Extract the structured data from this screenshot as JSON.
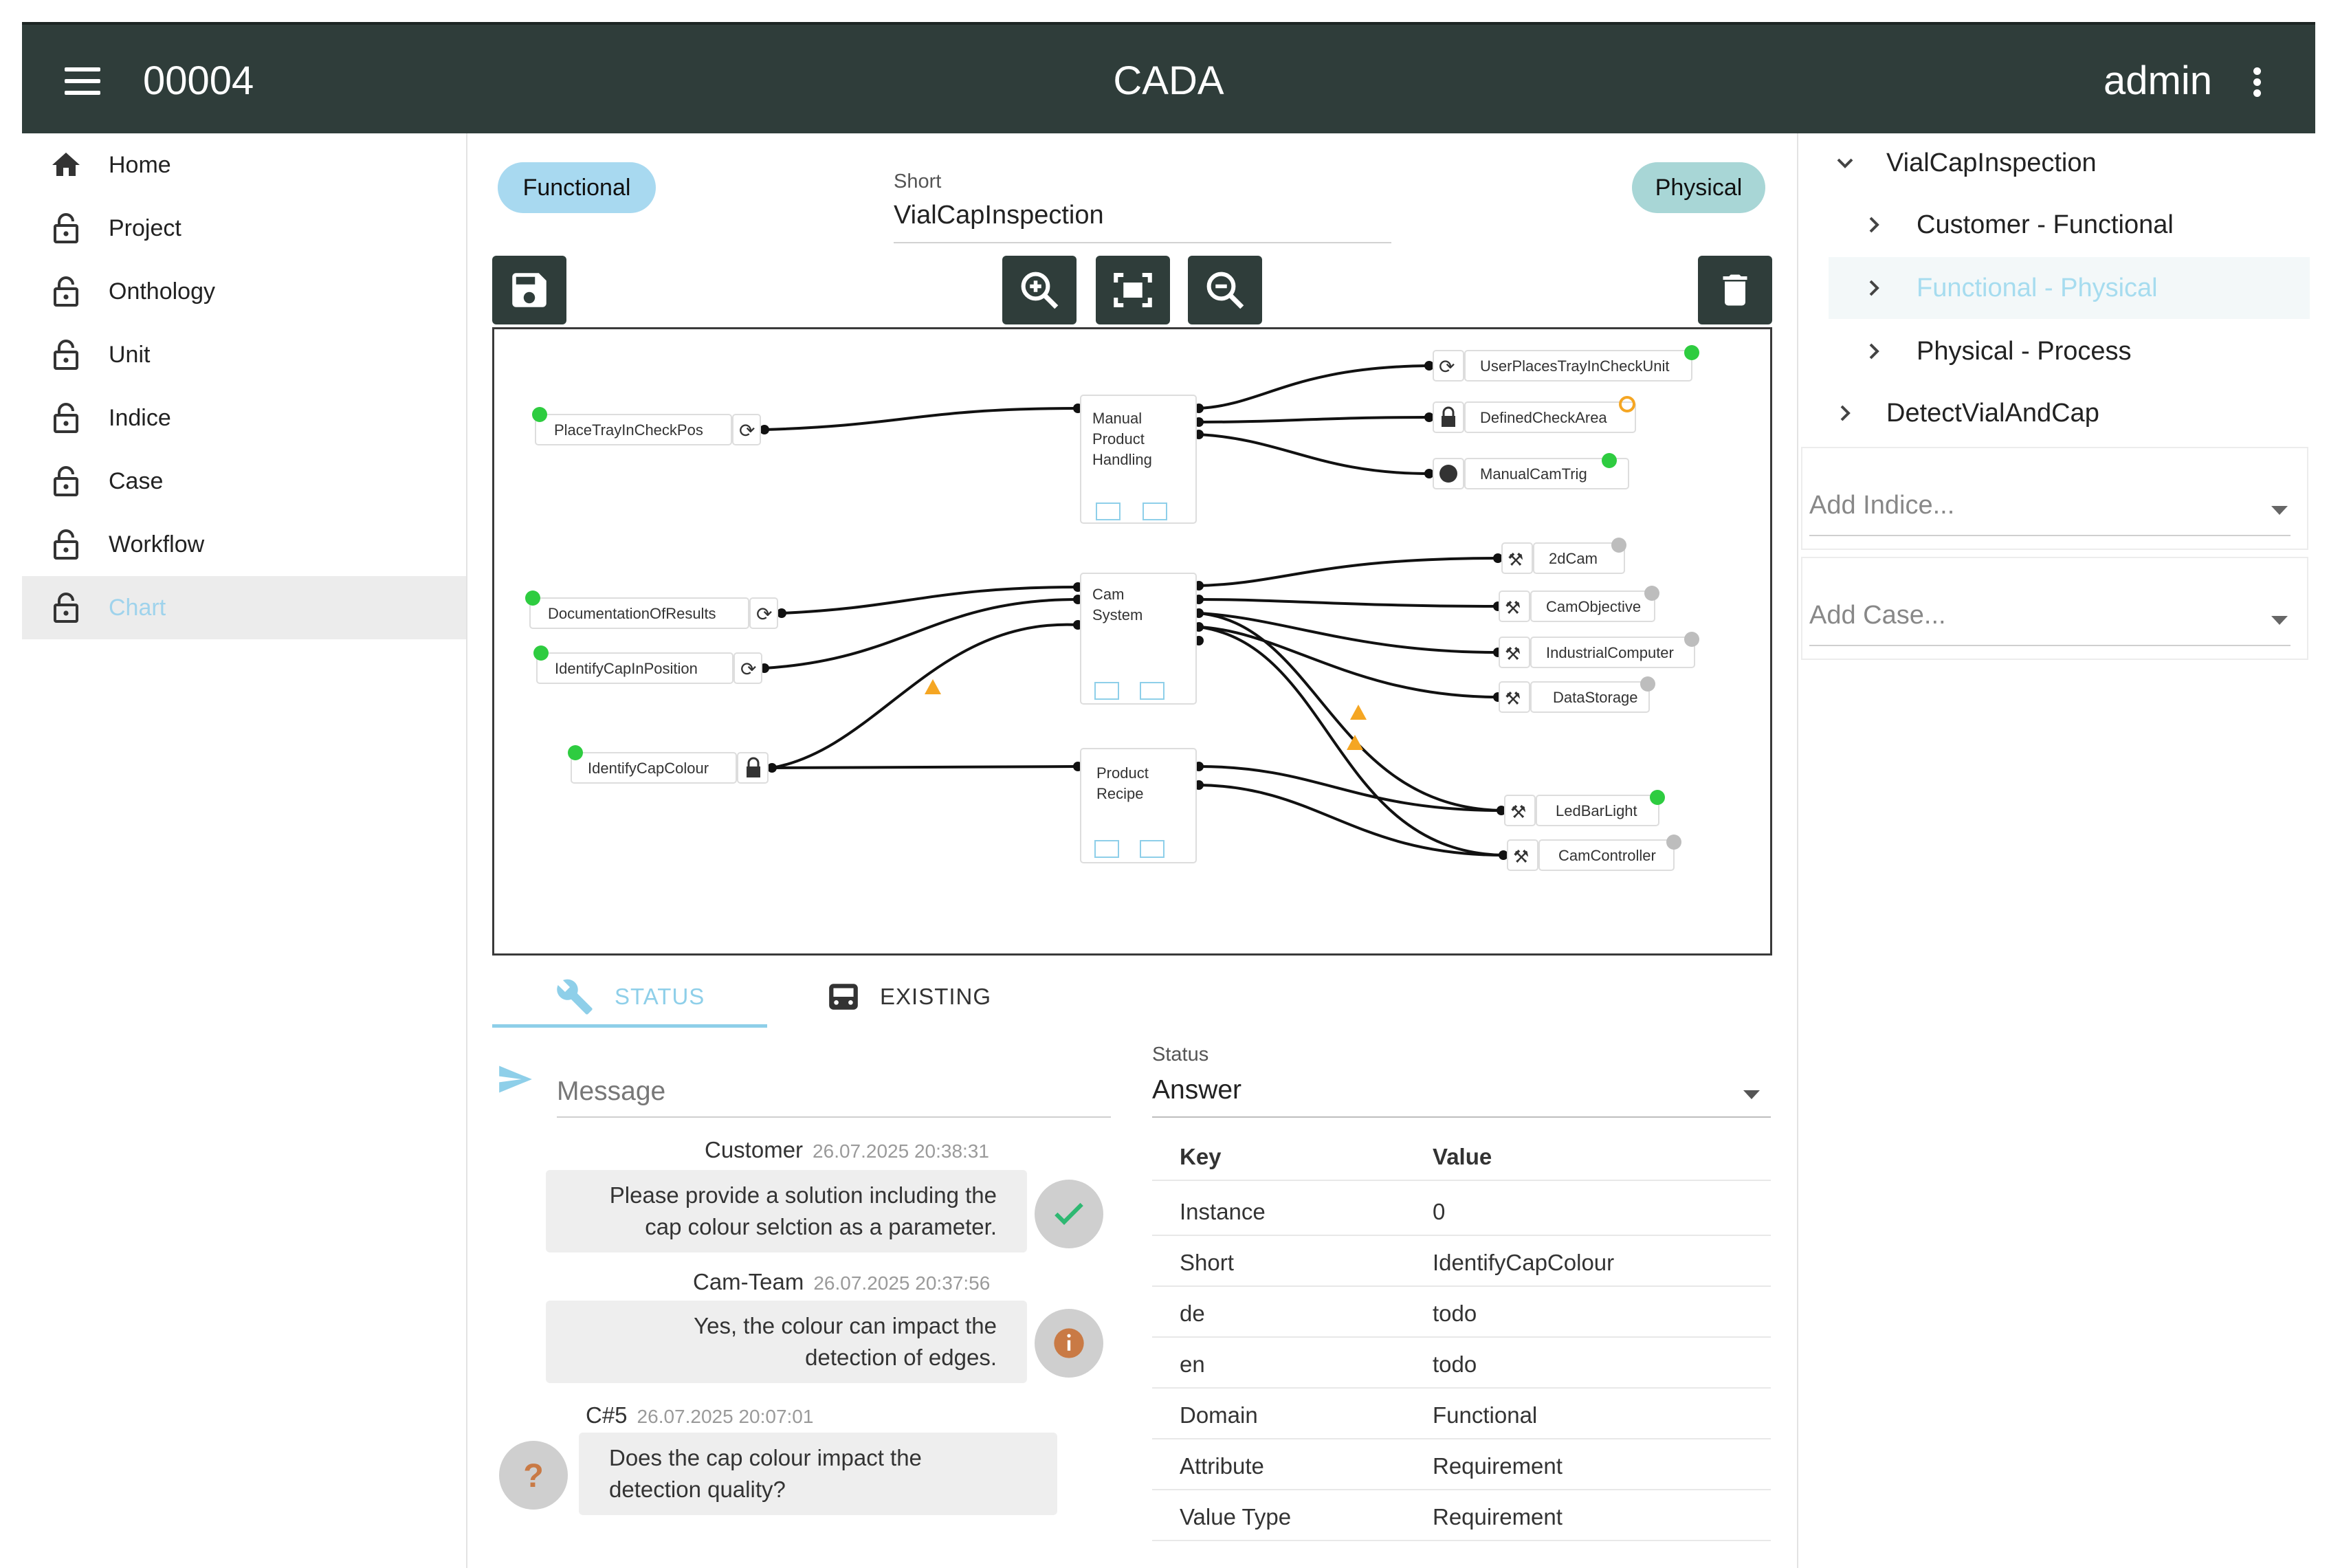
{
  "topbar": {
    "code": "00004",
    "title": "CADA",
    "user": "admin"
  },
  "sidebar": {
    "items": [
      {
        "label": "Home",
        "icon": "home-icon"
      },
      {
        "label": "Project",
        "icon": "lock-icon"
      },
      {
        "label": "Onthology",
        "icon": "lock-icon"
      },
      {
        "label": "Unit",
        "icon": "lock-icon"
      },
      {
        "label": "Indice",
        "icon": "lock-icon"
      },
      {
        "label": "Case",
        "icon": "lock-icon"
      },
      {
        "label": "Workflow",
        "icon": "lock-icon"
      },
      {
        "label": "Chart",
        "icon": "lock-icon",
        "active": true
      }
    ]
  },
  "editor": {
    "chip_left": "Functional",
    "chip_right": "Physical",
    "short_label": "Short",
    "short_value": "VialCapInspection"
  },
  "diagram": {
    "left_nodes": [
      "PlaceTrayInCheckPos",
      "DocumentationOfResults",
      "IdentifyCapInPosition",
      "IdentifyCapColour"
    ],
    "mid_nodes": [
      {
        "lines": [
          "Manual",
          "Product",
          "Handling"
        ]
      },
      {
        "lines": [
          "Cam",
          "System"
        ]
      },
      {
        "lines": [
          "Product",
          "Recipe"
        ]
      }
    ],
    "right_nodes": [
      "UserPlacesTrayInCheckUnit",
      "DefinedCheckArea",
      "ManualCamTrig",
      "2dCam",
      "CamObjective",
      "IndustrialComputer",
      "DataStorage",
      "LedBarLight",
      "CamController"
    ],
    "colors": {
      "ok": "#2ecc40",
      "warn": "#f5a623",
      "idle": "#bdbdbd"
    }
  },
  "tabs": {
    "status": "STATUS",
    "existing": "EXISTING"
  },
  "message": {
    "placeholder": "Message"
  },
  "status": {
    "label": "Status",
    "value": "Answer"
  },
  "chat": [
    {
      "author": "Customer",
      "time": "26.07.2025 20:38:31",
      "lines": [
        "Please provide a solution including the",
        "cap colour selction as a parameter."
      ],
      "avatar": "check-icon"
    },
    {
      "author": "Cam-Team",
      "time": "26.07.2025 20:37:56",
      "lines": [
        "Yes, the colour can impact the",
        "detection of edges."
      ],
      "avatar": "info-icon"
    },
    {
      "author": "C#5",
      "time": "26.07.2025 20:07:01",
      "lines": [
        "Does the cap colour impact the",
        "detection quality?"
      ],
      "avatar": "question-icon"
    }
  ],
  "table": {
    "head": {
      "key": "Key",
      "value": "Value"
    },
    "rows": [
      {
        "key": "Instance",
        "value": "0"
      },
      {
        "key": "Short",
        "value": "IdentifyCapColour"
      },
      {
        "key": "de",
        "value": "todo"
      },
      {
        "key": "en",
        "value": "todo"
      },
      {
        "key": "Domain",
        "value": "Functional"
      },
      {
        "key": "Attribute",
        "value": "Requirement"
      },
      {
        "key": "Value Type",
        "value": "Requirement"
      }
    ]
  },
  "tree": {
    "root": "VialCapInspection",
    "children": [
      "Customer - Functional",
      "Functional - Physical",
      "Physical - Process"
    ],
    "sibling": "DetectVialAndCap"
  },
  "add": {
    "indice": "Add Indice...",
    "case": "Add Case..."
  }
}
